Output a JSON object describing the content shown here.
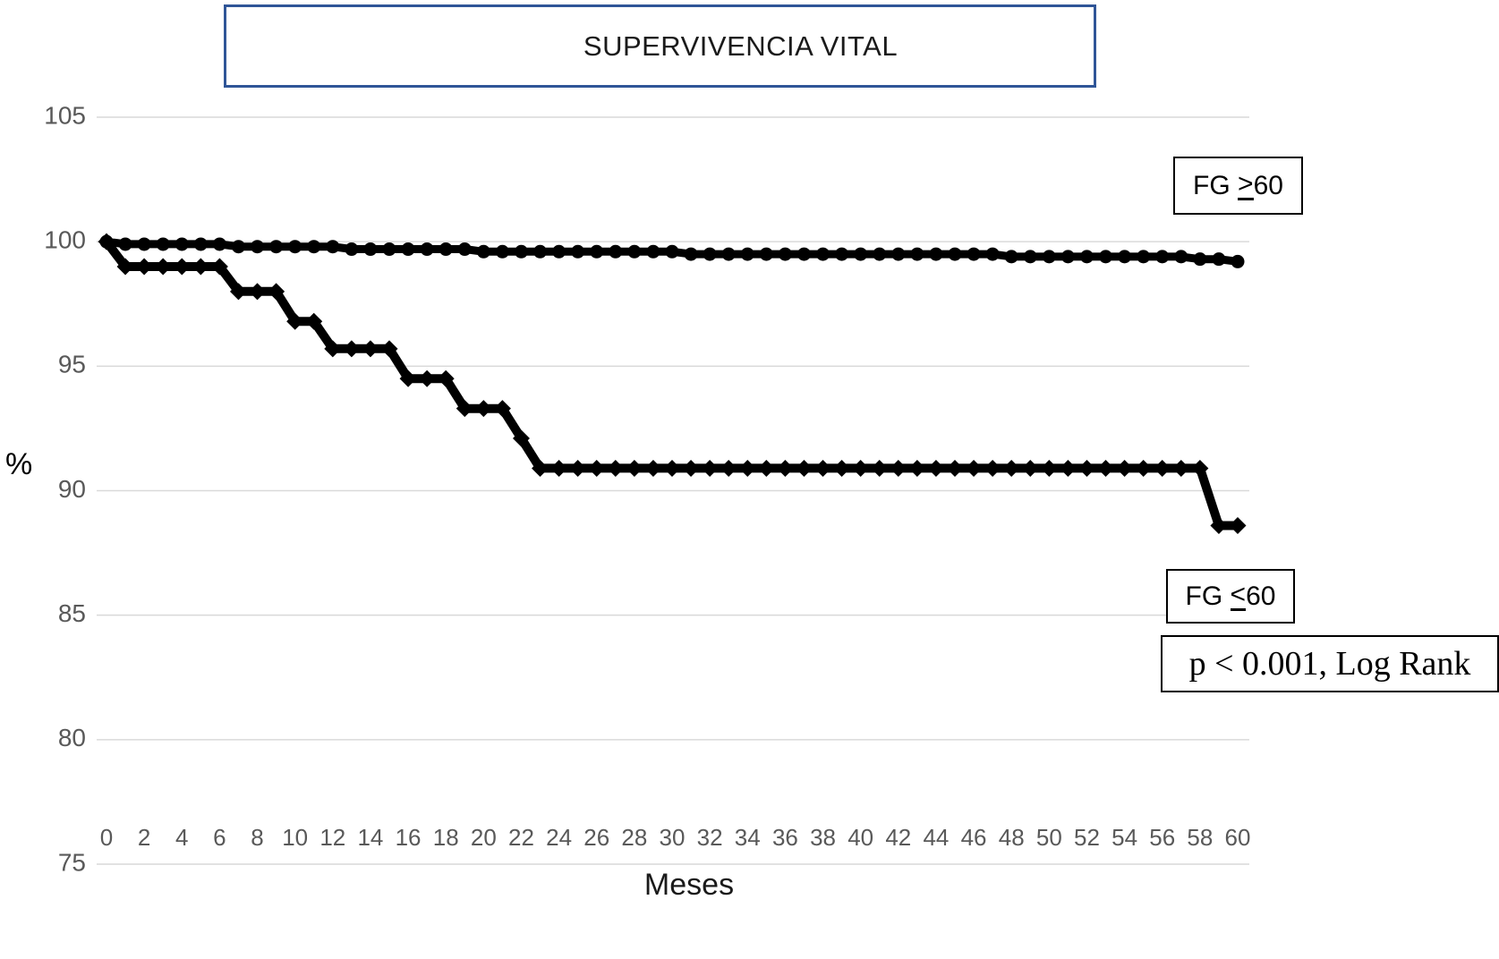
{
  "title": "SUPERVIVENCIA VITAL",
  "ylabel": "%",
  "xlabel": "Meses",
  "annotations": {
    "top_series_label": {
      "prefix": "FG ",
      "op": ">",
      "suffix": "60"
    },
    "bottom_series_label": {
      "prefix": "FG ",
      "op": "<",
      "suffix": "60"
    },
    "pvalue": "p < 0.001, Log Rank"
  },
  "colors": {
    "line": "#000000",
    "grid": "#d9d9d9",
    "tick_label": "#595959",
    "title_box_border": "#2f5597",
    "annotation_border": "#000000"
  },
  "chart_data": {
    "type": "line",
    "title": "SUPERVIVENCIA VITAL",
    "xlabel": "Meses",
    "ylabel": "%",
    "xlim": [
      0,
      60
    ],
    "xtick_step": 2,
    "ylim": [
      75,
      105
    ],
    "ytick_step": 5,
    "grid": true,
    "legend_position": "none",
    "x": [
      0,
      1,
      2,
      3,
      4,
      5,
      6,
      7,
      8,
      9,
      10,
      11,
      12,
      13,
      14,
      15,
      16,
      17,
      18,
      19,
      20,
      21,
      22,
      23,
      24,
      25,
      26,
      27,
      28,
      29,
      30,
      31,
      32,
      33,
      34,
      35,
      36,
      37,
      38,
      39,
      40,
      41,
      42,
      43,
      44,
      45,
      46,
      47,
      48,
      49,
      50,
      51,
      52,
      53,
      54,
      55,
      56,
      57,
      58,
      59,
      60
    ],
    "series": [
      {
        "name": "FG ≥60",
        "marker": "circle",
        "values": [
          100,
          99.9,
          99.9,
          99.9,
          99.9,
          99.9,
          99.9,
          99.8,
          99.8,
          99.8,
          99.8,
          99.8,
          99.8,
          99.7,
          99.7,
          99.7,
          99.7,
          99.7,
          99.7,
          99.7,
          99.6,
          99.6,
          99.6,
          99.6,
          99.6,
          99.6,
          99.6,
          99.6,
          99.6,
          99.6,
          99.6,
          99.5,
          99.5,
          99.5,
          99.5,
          99.5,
          99.5,
          99.5,
          99.5,
          99.5,
          99.5,
          99.5,
          99.5,
          99.5,
          99.5,
          99.5,
          99.5,
          99.5,
          99.4,
          99.4,
          99.4,
          99.4,
          99.4,
          99.4,
          99.4,
          99.4,
          99.4,
          99.4,
          99.3,
          99.3,
          99.2
        ]
      },
      {
        "name": "FG ≤60",
        "marker": "diamond",
        "values": [
          100,
          99,
          99,
          99,
          99,
          99,
          99,
          98,
          98,
          98,
          96.8,
          96.8,
          95.7,
          95.7,
          95.7,
          95.7,
          94.5,
          94.5,
          94.5,
          93.3,
          93.3,
          93.3,
          92.1,
          90.9,
          90.9,
          90.9,
          90.9,
          90.9,
          90.9,
          90.9,
          90.9,
          90.9,
          90.9,
          90.9,
          90.9,
          90.9,
          90.9,
          90.9,
          90.9,
          90.9,
          90.9,
          90.9,
          90.9,
          90.9,
          90.9,
          90.9,
          90.9,
          90.9,
          90.9,
          90.9,
          90.9,
          90.9,
          90.9,
          90.9,
          90.9,
          90.9,
          90.9,
          90.9,
          90.9,
          88.6,
          88.6
        ]
      }
    ]
  }
}
